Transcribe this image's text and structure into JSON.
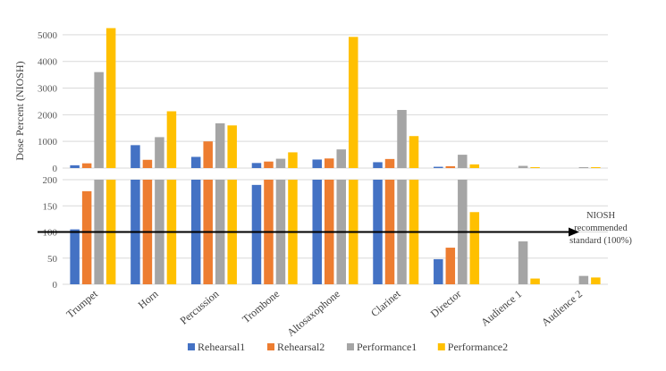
{
  "chart_data": {
    "type": "bar",
    "ylabel": "Dose Percent (NIOSH)",
    "categories": [
      "Trumpet",
      "Horn",
      "Percussion",
      "Trombone",
      "Altosaxophone",
      "Clarinet",
      "Director",
      "Audience 1",
      "Audience 2"
    ],
    "series": [
      {
        "name": "Rehearsal1",
        "color": "#4472C4",
        "values": [
          105,
          860,
          420,
          190,
          320,
          220,
          48,
          null,
          null
        ]
      },
      {
        "name": "Rehearsal2",
        "color": "#ED7D31",
        "values": [
          178,
          310,
          1000,
          245,
          360,
          340,
          70,
          null,
          null
        ]
      },
      {
        "name": "Performance1",
        "color": "#A5A5A5",
        "values": [
          3600,
          1160,
          1680,
          350,
          700,
          2180,
          500,
          82,
          16
        ]
      },
      {
        "name": "Performance2",
        "color": "#FFC000",
        "values": [
          5250,
          2130,
          1600,
          590,
          4920,
          1200,
          138,
          11,
          13
        ]
      }
    ],
    "panels": [
      {
        "name": "upper",
        "ylim": [
          0,
          5500
        ],
        "ticks": [
          0,
          1000,
          2000,
          3000,
          4000,
          5000
        ]
      },
      {
        "name": "lower",
        "ylim": [
          0,
          200
        ],
        "ticks": [
          0,
          50,
          100,
          150,
          200
        ]
      }
    ],
    "reference_line": {
      "value": 100,
      "label_lines": [
        "NIOSH",
        "recommended",
        "standard (100%)"
      ]
    },
    "legend_position": "bottom"
  }
}
